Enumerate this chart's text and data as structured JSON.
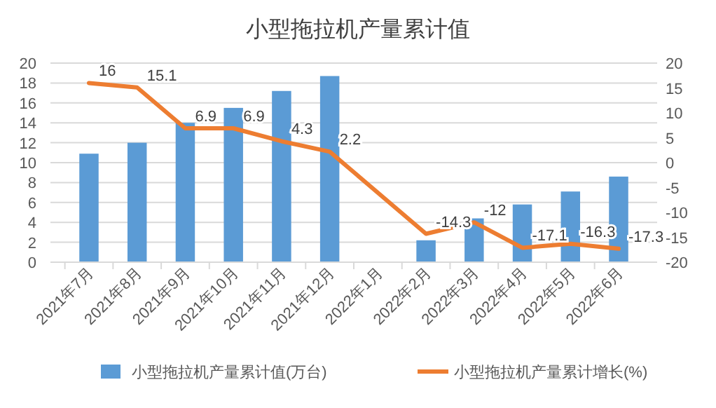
{
  "chart_data": {
    "type": "bar",
    "title": "小型拖拉机产量累计值",
    "categories": [
      "2021年7月",
      "2021年8月",
      "2021年9月",
      "2021年10月",
      "2021年11月",
      "2021年12月",
      "2022年1月",
      "2022年2月",
      "2022年3月",
      "2022年4月",
      "2022年5月",
      "2022年6月"
    ],
    "series": [
      {
        "name": "小型拖拉机产量累计值(万台)",
        "color": "#5b9bd5",
        "values": [
          10.9,
          12.0,
          14.0,
          15.5,
          17.2,
          18.7,
          null,
          2.2,
          4.4,
          5.8,
          7.1,
          8.6
        ]
      },
      {
        "name": "小型拖拉机产量累计增长(%)",
        "type": "line",
        "axis": "y2",
        "color": "#ed7d31",
        "values": [
          16,
          15.1,
          6.9,
          6.9,
          4.3,
          2.2,
          null,
          -14.3,
          -12,
          -17.1,
          -16.3,
          -17.3
        ],
        "value_labels": [
          "16",
          "15.1",
          "6.9",
          "6.9",
          "4.3",
          "2.2",
          null,
          "-14.3",
          "-12",
          "-17.1",
          "-16.3",
          "-17.3"
        ]
      }
    ],
    "ylim": [
      0,
      20
    ],
    "yticks": [
      0,
      2,
      4,
      6,
      8,
      10,
      12,
      14,
      16,
      18,
      20
    ],
    "y2lim": [
      -20,
      20
    ],
    "y2ticks": [
      -20,
      -15,
      -10,
      -5,
      0,
      5,
      10,
      15,
      20
    ],
    "grid": "y",
    "legend": "bottom",
    "marker": "none"
  }
}
